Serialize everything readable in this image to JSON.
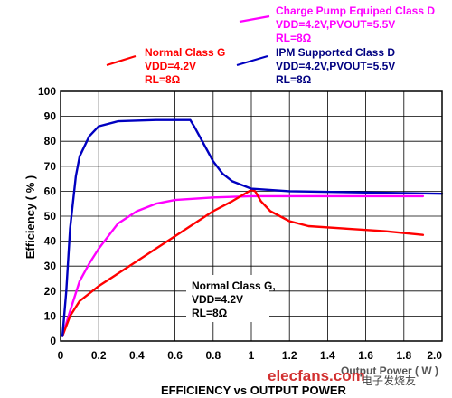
{
  "chart_data": {
    "type": "line",
    "title": "EFFICIENCY vs OUTPUT POWER",
    "xlabel": "Output Power ( W )",
    "ylabel": "Efficiency ( % )",
    "xlim": [
      0,
      2.0
    ],
    "ylim": [
      0,
      100
    ],
    "xticks": [
      "0",
      "0.2",
      "0.4",
      "0.6",
      "0.8",
      "1",
      "1.2",
      "1.4",
      "1.6",
      "1.8",
      "2.0"
    ],
    "yticks": [
      "0",
      "10",
      "20",
      "30",
      "40",
      "50",
      "60",
      "70",
      "80",
      "90",
      "100"
    ],
    "grid": true,
    "series": [
      {
        "name": "Charge Pump Equiped Class D",
        "label_lines": [
          "Charge Pump Equiped Class D",
          "VDD=4.2V,PVOUT=5.5V",
          "RL=8Ω"
        ],
        "color": "#ff00ff",
        "points": [
          [
            0.01,
            2
          ],
          [
            0.05,
            12
          ],
          [
            0.1,
            24
          ],
          [
            0.15,
            31
          ],
          [
            0.2,
            37
          ],
          [
            0.3,
            47
          ],
          [
            0.4,
            52
          ],
          [
            0.5,
            55
          ],
          [
            0.6,
            56.5
          ],
          [
            0.8,
            57.5
          ],
          [
            1.0,
            58
          ],
          [
            1.2,
            58
          ],
          [
            1.5,
            58
          ],
          [
            1.7,
            58
          ],
          [
            1.9,
            58
          ]
        ]
      },
      {
        "name": "Normal Class G",
        "label_lines": [
          "Normal Class G",
          "VDD=4.2V",
          "RL=8Ω"
        ],
        "color": "#ff0000",
        "points": [
          [
            0.01,
            2
          ],
          [
            0.05,
            10
          ],
          [
            0.1,
            16
          ],
          [
            0.2,
            22
          ],
          [
            0.3,
            27
          ],
          [
            0.4,
            32
          ],
          [
            0.5,
            37
          ],
          [
            0.6,
            42
          ],
          [
            0.7,
            47
          ],
          [
            0.8,
            52
          ],
          [
            0.9,
            56
          ],
          [
            1.0,
            60.5
          ],
          [
            1.02,
            60
          ],
          [
            1.05,
            56
          ],
          [
            1.1,
            52
          ],
          [
            1.2,
            48
          ],
          [
            1.3,
            46
          ],
          [
            1.5,
            45
          ],
          [
            1.7,
            44
          ],
          [
            1.9,
            42.5
          ]
        ]
      },
      {
        "name": "IPM Supported Class D",
        "label_lines": [
          "IPM Supported Class D",
          "VDD=4.2V,PVOUT=5.5V",
          "RL=8Ω"
        ],
        "color": "#0000c0",
        "points": [
          [
            0.01,
            2
          ],
          [
            0.03,
            20
          ],
          [
            0.05,
            45
          ],
          [
            0.08,
            66
          ],
          [
            0.1,
            74
          ],
          [
            0.15,
            82
          ],
          [
            0.2,
            86
          ],
          [
            0.3,
            88
          ],
          [
            0.5,
            88.5
          ],
          [
            0.68,
            88.5
          ],
          [
            0.7,
            86
          ],
          [
            0.75,
            79
          ],
          [
            0.8,
            72
          ],
          [
            0.85,
            67
          ],
          [
            0.9,
            64
          ],
          [
            1.0,
            61
          ],
          [
            1.2,
            60
          ],
          [
            1.6,
            59.5
          ],
          [
            2.0,
            59
          ]
        ]
      }
    ],
    "annotation": {
      "lines": [
        "Normal Class G,",
        "VDD=4.2V",
        "RL=8Ω"
      ]
    }
  },
  "watermark": {
    "text": "elecfans.com",
    "cn": "电子发烧友"
  }
}
